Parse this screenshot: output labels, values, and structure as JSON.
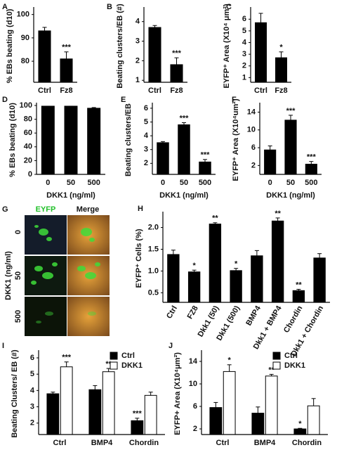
{
  "chart_data": [
    {
      "panel": "A",
      "type": "bar",
      "ylabel": "% EBs beating (d10)",
      "categories": [
        "Ctrl",
        "Fz8"
      ],
      "values": [
        93,
        81
      ],
      "errors": [
        1.5,
        3
      ],
      "annotations": [
        null,
        "***"
      ],
      "color": "#000000",
      "ylim": [
        71,
        102
      ],
      "yticks": [
        80,
        90,
        100
      ]
    },
    {
      "panel": "B",
      "type": "bar",
      "ylabel": "Beating clusters/EB (#)",
      "categories": [
        "Ctrl",
        "Fz8"
      ],
      "values": [
        3.7,
        1.8
      ],
      "errors": [
        0.1,
        0.35
      ],
      "annotations": [
        null,
        "***"
      ],
      "color": "#000000",
      "ylim": [
        0.9,
        4.6
      ],
      "yticks": [
        1,
        2,
        3,
        4
      ]
    },
    {
      "panel": "C",
      "type": "bar",
      "ylabel": "EYFP⁺ Area (X10⁴ μm²)",
      "categories": [
        "Ctrl",
        "Fz8"
      ],
      "values": [
        5.7,
        2.7
      ],
      "errors": [
        0.8,
        0.5
      ],
      "annotations": [
        null,
        "*"
      ],
      "color": "#000000",
      "ylim": [
        0.6,
        6.8
      ],
      "yticks": [
        1,
        2,
        3,
        4,
        5,
        6
      ]
    },
    {
      "panel": "D",
      "type": "bar",
      "ylabel": "% EBs beating (d10)",
      "xlabel": "DKK1 (ng/ml)",
      "categories": [
        "0",
        "50",
        "500"
      ],
      "values": [
        99,
        99,
        96
      ],
      "errors": [
        0,
        0,
        1
      ],
      "annotations": [
        null,
        null,
        null
      ],
      "color": "#000000",
      "ylim": [
        0,
        100
      ],
      "yticks": [
        0,
        20,
        40,
        60,
        80,
        100
      ]
    },
    {
      "panel": "E",
      "type": "bar",
      "ylabel": "Beating clusters/EB",
      "xlabel": "DKK1 (ng/ml)",
      "categories": [
        "0",
        "50",
        "500"
      ],
      "values": [
        3.5,
        4.8,
        2.1
      ],
      "errors": [
        0.08,
        0.15,
        0.18
      ],
      "annotations": [
        null,
        "***",
        "***"
      ],
      "color": "#000000",
      "ylim": [
        1.2,
        6.2
      ],
      "yticks": [
        2,
        3,
        4,
        5,
        6
      ]
    },
    {
      "panel": "F",
      "type": "bar",
      "ylabel": "EYFP⁺ Area (X10⁴um²)",
      "xlabel": "DKK1 (ng/ml)",
      "categories": [
        "0",
        "50",
        "500"
      ],
      "values": [
        5.5,
        12.2,
        2.3
      ],
      "errors": [
        0.9,
        1.1,
        0.6
      ],
      "annotations": [
        null,
        "***",
        "***"
      ],
      "color": "#000000",
      "ylim": [
        0,
        15.5
      ],
      "yticks": [
        2,
        6,
        10,
        14
      ]
    },
    {
      "panel": "H",
      "type": "bar",
      "ylabel": "EYFP⁺ Cells (%)",
      "categories": [
        "Ctrl",
        "FZ8",
        "Dkk1 (50)",
        "Dkk1 (500)",
        "BMP4",
        "Dkk1 + BMP4",
        "Chordin",
        "Dkk1 + Chordin"
      ],
      "values": [
        1.38,
        0.98,
        2.08,
        1.01,
        1.35,
        2.15,
        0.55,
        1.3
      ],
      "errors": [
        0.1,
        0.04,
        0.03,
        0.05,
        0.12,
        0.07,
        0.03,
        0.1
      ],
      "annotations": [
        null,
        "*",
        "**",
        "*",
        null,
        "**",
        "**",
        null
      ],
      "color": "#000000",
      "ylim": [
        0.28,
        2.3
      ],
      "yticks": [
        0.5,
        {
          "value": 1,
          "label": "1.0"
        },
        1.5,
        {
          "value": 2,
          "label": "2.0"
        }
      ]
    },
    {
      "panel": "I",
      "type": "bar",
      "ylabel": "Beating Clusters/ EB (#)",
      "categories": [
        "Ctrl",
        "BMP4",
        "Chordin"
      ],
      "series": [
        {
          "name": "Ctrl",
          "color": "#000000",
          "values": [
            3.8,
            4.05,
            2.15
          ],
          "errors": [
            0.1,
            0.25,
            0.15
          ],
          "annotations": [
            null,
            null,
            "***"
          ]
        },
        {
          "name": "DKK1",
          "color": "#ffffff",
          "values": [
            5.45,
            5.15,
            3.7
          ],
          "errors": [
            0.3,
            0.2,
            0.2
          ],
          "annotations": [
            "***",
            "**",
            null
          ]
        }
      ],
      "ylim": [
        1.3,
        6.3
      ],
      "yticks": [
        2,
        3,
        4,
        5,
        6
      ],
      "legend": "upper right"
    },
    {
      "panel": "J",
      "type": "bar",
      "ylabel": "EYFP+ Area (X10⁴μm²)",
      "categories": [
        "Ctrl",
        "BMP4",
        "Chordin"
      ],
      "series": [
        {
          "name": "Ctrl",
          "color": "#000000",
          "values": [
            5.8,
            4.8,
            2.0
          ],
          "errors": [
            0.9,
            1.1,
            0.1
          ],
          "annotations": [
            null,
            null,
            "*"
          ]
        },
        {
          "name": "DKK1",
          "color": "#ffffff",
          "values": [
            12.2,
            11.4,
            6.1
          ],
          "errors": [
            1.2,
            0.3,
            1.3
          ],
          "annotations": [
            "*",
            "**",
            null
          ]
        }
      ],
      "ylim": [
        1,
        15.5
      ],
      "yticks": [
        2,
        6,
        10,
        14
      ],
      "legend": "upper right"
    }
  ],
  "image_panel": {
    "panel": "G",
    "columns": [
      "EYFP",
      "Merge"
    ],
    "rows": [
      "0",
      "50",
      "500"
    ],
    "axis_label": "DKK1 (ng/ml)"
  }
}
